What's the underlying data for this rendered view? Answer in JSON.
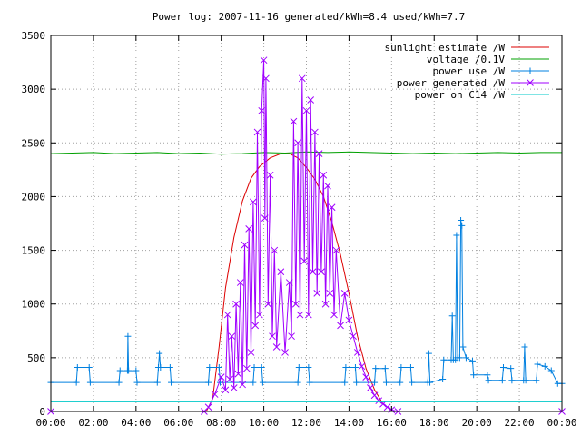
{
  "chart_data": {
    "type": "line",
    "title": "Power log: 2007-11-16 generated/kWh=8.4 used/kWh=7.7",
    "xlabel": "",
    "ylabel": "",
    "x_ticks": [
      "00:00",
      "02:00",
      "04:00",
      "06:00",
      "08:00",
      "10:00",
      "12:00",
      "14:00",
      "16:00",
      "18:00",
      "20:00",
      "22:00",
      "00:00"
    ],
    "y_ticks": [
      0,
      500,
      1000,
      1500,
      2000,
      2500,
      3000,
      3500
    ],
    "xlim": [
      0,
      24
    ],
    "ylim": [
      0,
      3500
    ],
    "grid": true,
    "legend_position": "top-right",
    "series": [
      {
        "name": "sunlight estimate /W",
        "color": "#dd0000",
        "marker": "none",
        "points": [
          [
            0,
            0
          ],
          [
            7.3,
            0
          ],
          [
            7.6,
            120
          ],
          [
            7.9,
            600
          ],
          [
            8.2,
            1150
          ],
          [
            8.6,
            1620
          ],
          [
            9.0,
            1960
          ],
          [
            9.4,
            2170
          ],
          [
            9.8,
            2280
          ],
          [
            10.3,
            2360
          ],
          [
            10.8,
            2400
          ],
          [
            11.2,
            2400
          ],
          [
            11.6,
            2360
          ],
          [
            12.0,
            2270
          ],
          [
            12.4,
            2160
          ],
          [
            12.8,
            2000
          ],
          [
            13.2,
            1760
          ],
          [
            13.6,
            1460
          ],
          [
            14.0,
            1100
          ],
          [
            14.4,
            700
          ],
          [
            14.8,
            400
          ],
          [
            15.2,
            200
          ],
          [
            15.6,
            70
          ],
          [
            16.0,
            10
          ],
          [
            16.3,
            0
          ],
          [
            24,
            0
          ]
        ]
      },
      {
        "name": "voltage /0.1V",
        "color": "#00a000",
        "marker": "none",
        "points": [
          [
            0,
            2400
          ],
          [
            1,
            2405
          ],
          [
            2,
            2410
          ],
          [
            3,
            2400
          ],
          [
            4,
            2405
          ],
          [
            5,
            2410
          ],
          [
            6,
            2400
          ],
          [
            7,
            2405
          ],
          [
            8,
            2395
          ],
          [
            9,
            2400
          ],
          [
            10,
            2410
          ],
          [
            11,
            2405
          ],
          [
            12,
            2415
          ],
          [
            13,
            2410
          ],
          [
            14,
            2415
          ],
          [
            15,
            2410
          ],
          [
            16,
            2405
          ],
          [
            17,
            2400
          ],
          [
            18,
            2405
          ],
          [
            19,
            2400
          ],
          [
            20,
            2405
          ],
          [
            21,
            2410
          ],
          [
            22,
            2405
          ],
          [
            23,
            2410
          ],
          [
            24,
            2410
          ]
        ]
      },
      {
        "name": "power use /W",
        "color": "#0080e0",
        "marker": "plus",
        "points": [
          [
            0,
            270
          ],
          [
            1.2,
            270
          ],
          [
            1.25,
            410
          ],
          [
            1.8,
            410
          ],
          [
            1.85,
            270
          ],
          [
            3.2,
            270
          ],
          [
            3.25,
            380
          ],
          [
            3.6,
            380
          ],
          [
            3.62,
            700
          ],
          [
            3.65,
            380
          ],
          [
            4.0,
            380
          ],
          [
            4.05,
            270
          ],
          [
            5.0,
            270
          ],
          [
            5.05,
            410
          ],
          [
            5.1,
            540
          ],
          [
            5.15,
            410
          ],
          [
            5.6,
            410
          ],
          [
            5.65,
            270
          ],
          [
            7.4,
            270
          ],
          [
            7.45,
            410
          ],
          [
            7.9,
            410
          ],
          [
            7.95,
            270
          ],
          [
            9.5,
            270
          ],
          [
            9.55,
            410
          ],
          [
            9.9,
            410
          ],
          [
            9.95,
            270
          ],
          [
            11.6,
            270
          ],
          [
            11.65,
            410
          ],
          [
            12.1,
            410
          ],
          [
            12.15,
            270
          ],
          [
            13.8,
            270
          ],
          [
            13.85,
            410
          ],
          [
            14.3,
            410
          ],
          [
            14.35,
            270
          ],
          [
            15.2,
            270
          ],
          [
            15.25,
            400
          ],
          [
            15.7,
            400
          ],
          [
            15.75,
            270
          ],
          [
            16.4,
            270
          ],
          [
            16.45,
            410
          ],
          [
            16.9,
            410
          ],
          [
            16.95,
            270
          ],
          [
            17.7,
            270
          ],
          [
            17.75,
            540
          ],
          [
            17.8,
            270
          ],
          [
            18.4,
            300
          ],
          [
            18.45,
            480
          ],
          [
            18.8,
            480
          ],
          [
            18.85,
            890
          ],
          [
            18.9,
            480
          ],
          [
            19.0,
            480
          ],
          [
            19.05,
            1640
          ],
          [
            19.1,
            500
          ],
          [
            19.2,
            500
          ],
          [
            19.25,
            1780
          ],
          [
            19.3,
            1730
          ],
          [
            19.35,
            600
          ],
          [
            19.5,
            500
          ],
          [
            19.8,
            470
          ],
          [
            19.85,
            340
          ],
          [
            20.5,
            340
          ],
          [
            20.55,
            290
          ],
          [
            21.2,
            290
          ],
          [
            21.25,
            410
          ],
          [
            21.6,
            400
          ],
          [
            21.65,
            290
          ],
          [
            22.2,
            290
          ],
          [
            22.25,
            600
          ],
          [
            22.3,
            290
          ],
          [
            22.8,
            290
          ],
          [
            22.85,
            440
          ],
          [
            23.2,
            420
          ],
          [
            23.5,
            380
          ],
          [
            23.8,
            260
          ],
          [
            24,
            260
          ]
        ]
      },
      {
        "name": "power generated /W",
        "color": "#a000ff",
        "marker": "x",
        "points": [
          [
            0,
            0
          ],
          [
            7.2,
            0
          ],
          [
            7.4,
            40
          ],
          [
            7.7,
            160
          ],
          [
            8.0,
            320
          ],
          [
            8.2,
            200
          ],
          [
            8.3,
            900
          ],
          [
            8.4,
            300
          ],
          [
            8.5,
            700
          ],
          [
            8.6,
            220
          ],
          [
            8.7,
            1000
          ],
          [
            8.8,
            350
          ],
          [
            8.9,
            1200
          ],
          [
            9.0,
            250
          ],
          [
            9.1,
            1550
          ],
          [
            9.2,
            400
          ],
          [
            9.3,
            1700
          ],
          [
            9.4,
            550
          ],
          [
            9.5,
            1950
          ],
          [
            9.6,
            800
          ],
          [
            9.7,
            2600
          ],
          [
            9.8,
            900
          ],
          [
            9.9,
            2800
          ],
          [
            10.0,
            3270
          ],
          [
            10.05,
            1800
          ],
          [
            10.1,
            3100
          ],
          [
            10.2,
            1000
          ],
          [
            10.3,
            2200
          ],
          [
            10.4,
            700
          ],
          [
            10.5,
            1500
          ],
          [
            10.6,
            600
          ],
          [
            10.8,
            1300
          ],
          [
            11.0,
            550
          ],
          [
            11.2,
            1200
          ],
          [
            11.3,
            700
          ],
          [
            11.4,
            2700
          ],
          [
            11.5,
            1000
          ],
          [
            11.6,
            2500
          ],
          [
            11.7,
            900
          ],
          [
            11.8,
            3100
          ],
          [
            11.9,
            1400
          ],
          [
            12.0,
            2800
          ],
          [
            12.1,
            900
          ],
          [
            12.2,
            2900
          ],
          [
            12.3,
            1300
          ],
          [
            12.4,
            2600
          ],
          [
            12.5,
            1100
          ],
          [
            12.6,
            2400
          ],
          [
            12.7,
            1300
          ],
          [
            12.8,
            2200
          ],
          [
            12.9,
            1000
          ],
          [
            13.0,
            2100
          ],
          [
            13.1,
            1100
          ],
          [
            13.2,
            1900
          ],
          [
            13.3,
            900
          ],
          [
            13.4,
            1500
          ],
          [
            13.6,
            800
          ],
          [
            13.8,
            1100
          ],
          [
            14.0,
            850
          ],
          [
            14.2,
            700
          ],
          [
            14.4,
            550
          ],
          [
            14.6,
            420
          ],
          [
            14.8,
            320
          ],
          [
            15.0,
            220
          ],
          [
            15.2,
            150
          ],
          [
            15.4,
            100
          ],
          [
            15.6,
            70
          ],
          [
            15.8,
            40
          ],
          [
            16.0,
            15
          ],
          [
            16.3,
            0
          ],
          [
            24,
            0
          ]
        ]
      },
      {
        "name": "power on C14 /W",
        "color": "#00c8c8",
        "marker": "none",
        "points": [
          [
            0,
            90
          ],
          [
            24,
            90
          ]
        ]
      }
    ]
  }
}
